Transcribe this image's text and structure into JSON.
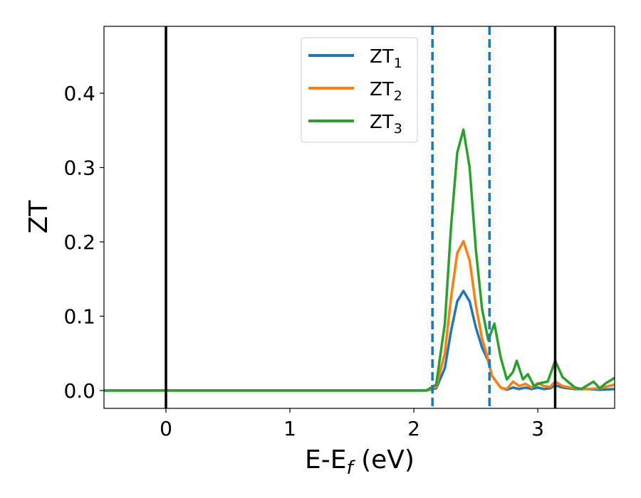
{
  "chart_data": {
    "type": "line",
    "xlabel": "E-E",
    "xlabel_sub": "f",
    "xlabel_unit": " (eV)",
    "ylabel": "ZT",
    "xlim": [
      -0.5,
      3.62
    ],
    "ylim": [
      -0.024,
      0.49
    ],
    "xticks": [
      0,
      1,
      2,
      3
    ],
    "xtick_labels": [
      "0",
      "1",
      "2",
      "3"
    ],
    "yticks": [
      0.0,
      0.1,
      0.2,
      0.3,
      0.4
    ],
    "ytick_labels": [
      "0.0",
      "0.1",
      "0.2",
      "0.3",
      "0.4"
    ],
    "grid": false,
    "legend_position": "top-center",
    "vlines_solid": [
      0.0,
      3.14
    ],
    "vlines_dashed": [
      2.15,
      2.61
    ],
    "series": [
      {
        "name": "ZT",
        "sub": "1",
        "color": "#1f77b4",
        "x": [
          -0.5,
          2.1,
          2.18,
          2.25,
          2.3,
          2.35,
          2.4,
          2.45,
          2.5,
          2.55,
          2.6,
          2.63,
          2.7,
          2.75,
          2.8,
          2.85,
          2.9,
          2.95,
          3.0,
          3.05,
          3.1,
          3.14,
          3.2,
          3.3,
          3.4,
          3.5,
          3.62
        ],
        "values": [
          0.0,
          0.0,
          0.003,
          0.03,
          0.08,
          0.12,
          0.134,
          0.12,
          0.085,
          0.058,
          0.04,
          0.02,
          0.004,
          0.001,
          0.004,
          0.002,
          0.004,
          0.002,
          0.004,
          0.002,
          0.003,
          0.007,
          0.004,
          0.002,
          0.002,
          0.001,
          0.002
        ]
      },
      {
        "name": "ZT",
        "sub": "2",
        "color": "#ff7f0e",
        "x": [
          -0.5,
          2.1,
          2.18,
          2.25,
          2.3,
          2.35,
          2.4,
          2.45,
          2.5,
          2.55,
          2.6,
          2.63,
          2.7,
          2.75,
          2.8,
          2.85,
          2.9,
          2.95,
          3.0,
          3.05,
          3.1,
          3.14,
          3.2,
          3.3,
          3.4,
          3.5,
          3.62
        ],
        "values": [
          0.0,
          0.0,
          0.005,
          0.05,
          0.125,
          0.185,
          0.201,
          0.175,
          0.115,
          0.07,
          0.042,
          0.02,
          0.004,
          0.002,
          0.012,
          0.006,
          0.009,
          0.004,
          0.01,
          0.006,
          0.005,
          0.012,
          0.006,
          0.003,
          0.002,
          0.003,
          0.008
        ]
      },
      {
        "name": "ZT",
        "sub": "3",
        "color": "#2ca02c",
        "x": [
          -0.5,
          2.1,
          2.18,
          2.25,
          2.3,
          2.35,
          2.4,
          2.45,
          2.5,
          2.55,
          2.6,
          2.65,
          2.7,
          2.75,
          2.8,
          2.83,
          2.88,
          2.92,
          2.97,
          3.02,
          3.08,
          3.14,
          3.2,
          3.3,
          3.35,
          3.45,
          3.5,
          3.55,
          3.62
        ],
        "values": [
          0.0,
          0.0,
          0.008,
          0.09,
          0.22,
          0.32,
          0.351,
          0.3,
          0.19,
          0.11,
          0.068,
          0.09,
          0.045,
          0.015,
          0.025,
          0.04,
          0.015,
          0.022,
          0.006,
          0.01,
          0.012,
          0.04,
          0.018,
          0.004,
          0.002,
          0.012,
          0.003,
          0.01,
          0.017
        ]
      }
    ]
  }
}
